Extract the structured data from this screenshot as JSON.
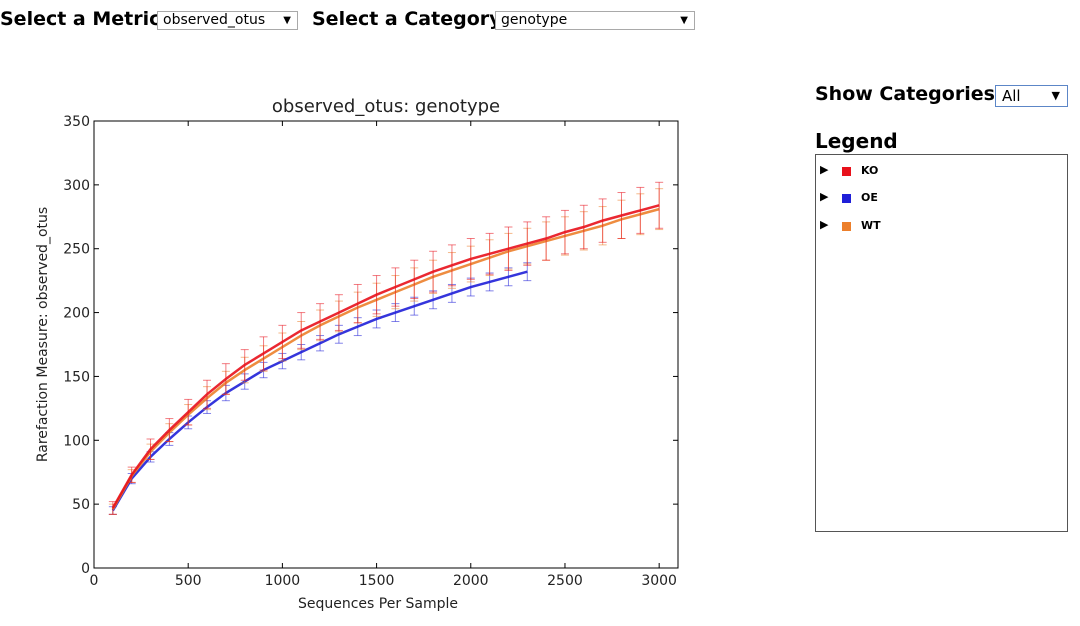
{
  "controls": {
    "metric_label": "Select a Metric:",
    "metric_value": "observed_otus",
    "category_label": "Select a Category:",
    "category_value": "genotype",
    "show_label": "Show Categories:",
    "show_value": "All"
  },
  "legend": {
    "title": "Legend",
    "items": [
      {
        "name": "KO",
        "color": "#e8111b"
      },
      {
        "name": "OE",
        "color": "#1f1fd8"
      },
      {
        "name": "WT",
        "color": "#ec7f2b"
      }
    ]
  },
  "chart_data": {
    "type": "line",
    "title": "observed_otus: genotype",
    "xlabel": "Sequences Per Sample",
    "ylabel": "Rarefaction Measure: observed_otus",
    "xlim": [
      0,
      3100
    ],
    "ylim": [
      0,
      350
    ],
    "xticks": [
      0,
      500,
      1000,
      1500,
      2000,
      2500,
      3000
    ],
    "yticks": [
      0,
      50,
      100,
      150,
      200,
      250,
      300,
      350
    ],
    "grid": false,
    "error_bars": true,
    "series": [
      {
        "name": "KO",
        "color": "#e8111b",
        "x": [
          100,
          200,
          300,
          400,
          500,
          600,
          700,
          800,
          900,
          1000,
          1100,
          1200,
          1300,
          1400,
          1500,
          1600,
          1700,
          1800,
          1900,
          2000,
          2100,
          2200,
          2300,
          2400,
          2500,
          2600,
          2700,
          2800,
          2900,
          3000
        ],
        "y": [
          47,
          73,
          93,
          108,
          122,
          136,
          148,
          159,
          168,
          177,
          186,
          193,
          200,
          207,
          214,
          220,
          226,
          232,
          237,
          242,
          246,
          250,
          254,
          258,
          263,
          267,
          272,
          276,
          280,
          284
        ],
        "err": [
          5,
          6,
          8,
          9,
          10,
          11,
          12,
          12,
          13,
          13,
          14,
          14,
          14,
          15,
          15,
          15,
          15,
          16,
          16,
          16,
          16,
          17,
          17,
          17,
          17,
          17,
          17,
          18,
          18,
          18
        ]
      },
      {
        "name": "OE",
        "color": "#1f1fd8",
        "x": [
          100,
          200,
          300,
          400,
          500,
          600,
          700,
          800,
          900,
          1000,
          1100,
          1200,
          1300,
          1400,
          1500,
          1600,
          1700,
          1800,
          1900,
          2000,
          2100,
          2200,
          2300
        ],
        "y": [
          45,
          70,
          87,
          101,
          114,
          126,
          137,
          146,
          155,
          162,
          169,
          176,
          183,
          189,
          195,
          200,
          205,
          210,
          215,
          220,
          224,
          228,
          232
        ],
        "err": [
          3,
          4,
          4,
          5,
          5,
          5,
          6,
          6,
          6,
          6,
          6,
          6,
          7,
          7,
          7,
          7,
          7,
          7,
          7,
          7,
          7,
          7,
          7
        ]
      },
      {
        "name": "WT",
        "color": "#ec7f2b",
        "x": [
          100,
          200,
          300,
          400,
          500,
          600,
          700,
          800,
          900,
          1000,
          1100,
          1200,
          1300,
          1400,
          1500,
          1600,
          1700,
          1800,
          1900,
          2000,
          2100,
          2200,
          2300,
          2400,
          2500,
          2600,
          2700,
          2800,
          2900,
          3000
        ],
        "y": [
          46,
          72,
          91,
          106,
          120,
          133,
          145,
          155,
          164,
          173,
          182,
          190,
          197,
          204,
          210,
          216,
          222,
          228,
          233,
          238,
          243,
          248,
          252,
          256,
          260,
          264,
          268,
          273,
          277,
          281
        ],
        "err": [
          4,
          5,
          6,
          7,
          8,
          9,
          9,
          10,
          10,
          11,
          11,
          12,
          12,
          12,
          13,
          13,
          13,
          13,
          14,
          14,
          14,
          14,
          14,
          15,
          15,
          15,
          15,
          15,
          16,
          16
        ]
      }
    ]
  }
}
